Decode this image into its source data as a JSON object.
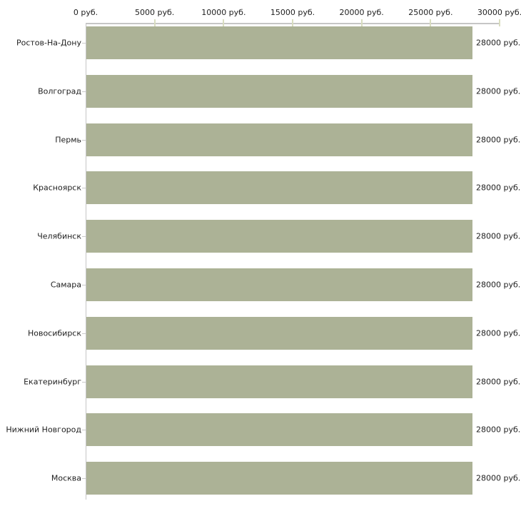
{
  "chart_data": {
    "type": "bar",
    "orientation": "horizontal",
    "title": "",
    "categories": [
      "Ростов-На-Дону",
      "Волгоград",
      "Пермь",
      "Красноярск",
      "Челябинск",
      "Самара",
      "Новосибирск",
      "Екатеринбург",
      "Нижний Новгород",
      "Москва"
    ],
    "values": [
      28000,
      28000,
      28000,
      28000,
      28000,
      28000,
      28000,
      28000,
      28000,
      28000
    ],
    "value_labels": [
      "28000 руб.",
      "28000 руб.",
      "28000 руб.",
      "28000 руб.",
      "28000 руб.",
      "28000 руб.",
      "28000 руб.",
      "28000 руб.",
      "28000 руб.",
      "28000 руб."
    ],
    "unit": "руб.",
    "x_axis": {
      "position": "top",
      "min": 0,
      "max": 30000,
      "tick_interval": 5000,
      "tick_labels": [
        "0 руб.",
        "5000 руб.",
        "10000 руб.",
        "15000 руб.",
        "20000 руб.",
        "25000 руб.",
        "30000 руб."
      ]
    },
    "grid": false,
    "legend": false,
    "colors": {
      "bar": "#acb296",
      "axis_line": "#c6c6c6",
      "axis_tick": "#d9ddc0",
      "category_tick": "#c9c9c9",
      "text": "#1e1e1e",
      "background": "#ffffff"
    }
  }
}
